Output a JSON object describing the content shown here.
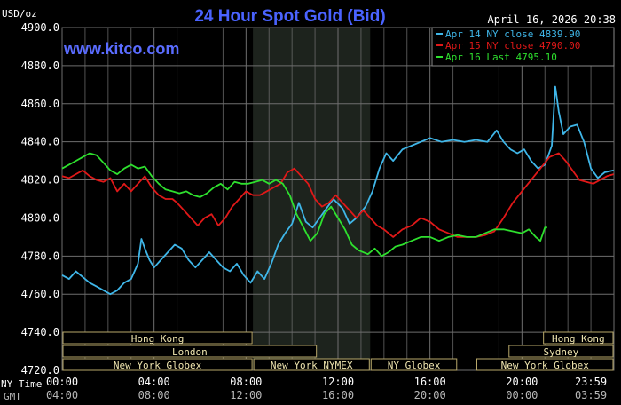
{
  "title": "24 Hour Spot Gold (Bid)",
  "unit_label": "USD/oz",
  "watermark": "www.kitco.com",
  "timestamp": "April 16, 2026 20:38",
  "colors": {
    "background": "#000000",
    "grid": "#6e6e6e",
    "title": "#4a63ff",
    "watermark": "#5a6cff",
    "apr14": "#3fb6e8",
    "apr15": "#e01818",
    "apr16": "#2ee02e",
    "session_box_text": "#f0e6b0",
    "session_box_border": "#b8a86a"
  },
  "chart_data": {
    "type": "line",
    "ylim": [
      4720,
      4900
    ],
    "y_ticks": [
      "4900.0",
      "4880.0",
      "4860.0",
      "4840.0",
      "4820.0",
      "4800.0",
      "4780.0",
      "4760.0",
      "4740.0",
      "4720.0"
    ],
    "y_tick_values": [
      4900,
      4880,
      4860,
      4840,
      4820,
      4800,
      4780,
      4760,
      4740,
      4720
    ],
    "xlim": [
      0,
      24
    ],
    "x_tick_hours": [
      0,
      4,
      8,
      12,
      16,
      20,
      24
    ],
    "ny_time_label": "NY Time",
    "gmt_label": "GMT",
    "ny_time_ticks": [
      "00:00",
      "04:00",
      "08:00",
      "12:00",
      "16:00",
      "20:00",
      "23:59"
    ],
    "gmt_ticks": [
      "04:00",
      "08:00",
      "12:00",
      "16:00",
      "20:00",
      "00:00",
      "03:59"
    ],
    "shaded_region": [
      8.3,
      13.4
    ],
    "series": [
      {
        "name": "Apr 14 NY close 4839.90",
        "color_key": "apr14",
        "points": [
          [
            0,
            4770
          ],
          [
            0.3,
            4768
          ],
          [
            0.6,
            4772
          ],
          [
            0.9,
            4769
          ],
          [
            1.2,
            4766
          ],
          [
            1.5,
            4764
          ],
          [
            1.8,
            4762
          ],
          [
            2.1,
            4760
          ],
          [
            2.4,
            4762
          ],
          [
            2.7,
            4766
          ],
          [
            3.0,
            4768
          ],
          [
            3.3,
            4776
          ],
          [
            3.45,
            4789
          ],
          [
            3.6,
            4784
          ],
          [
            3.8,
            4778
          ],
          [
            4.0,
            4774
          ],
          [
            4.3,
            4778
          ],
          [
            4.6,
            4782
          ],
          [
            4.9,
            4786
          ],
          [
            5.2,
            4784
          ],
          [
            5.5,
            4778
          ],
          [
            5.8,
            4774
          ],
          [
            6.1,
            4778
          ],
          [
            6.4,
            4782
          ],
          [
            6.7,
            4778
          ],
          [
            7.0,
            4774
          ],
          [
            7.3,
            4772
          ],
          [
            7.6,
            4776
          ],
          [
            7.9,
            4770
          ],
          [
            8.2,
            4766
          ],
          [
            8.5,
            4772
          ],
          [
            8.8,
            4768
          ],
          [
            9.1,
            4776
          ],
          [
            9.4,
            4786
          ],
          [
            9.7,
            4792
          ],
          [
            10.0,
            4797
          ],
          [
            10.3,
            4808
          ],
          [
            10.6,
            4798
          ],
          [
            10.9,
            4795
          ],
          [
            11.2,
            4800
          ],
          [
            11.5,
            4805
          ],
          [
            11.8,
            4810
          ],
          [
            12.2,
            4805
          ],
          [
            12.5,
            4797
          ],
          [
            12.8,
            4800
          ],
          [
            13.2,
            4806
          ],
          [
            13.5,
            4814
          ],
          [
            13.8,
            4826
          ],
          [
            14.1,
            4834
          ],
          [
            14.4,
            4830
          ],
          [
            14.8,
            4836
          ],
          [
            15.2,
            4838
          ],
          [
            15.6,
            4840
          ],
          [
            16.0,
            4842
          ],
          [
            16.5,
            4840
          ],
          [
            17.0,
            4841
          ],
          [
            17.5,
            4840
          ],
          [
            18.0,
            4841
          ],
          [
            18.5,
            4840
          ],
          [
            18.9,
            4846
          ],
          [
            19.2,
            4840
          ],
          [
            19.5,
            4836
          ],
          [
            19.8,
            4834
          ],
          [
            20.1,
            4836
          ],
          [
            20.4,
            4830
          ],
          [
            20.7,
            4826
          ],
          [
            21.0,
            4828
          ],
          [
            21.3,
            4838
          ],
          [
            21.45,
            4869
          ],
          [
            21.6,
            4856
          ],
          [
            21.8,
            4844
          ],
          [
            22.1,
            4848
          ],
          [
            22.4,
            4849
          ],
          [
            22.7,
            4840
          ],
          [
            23.0,
            4826
          ],
          [
            23.3,
            4821
          ],
          [
            23.6,
            4824
          ],
          [
            23.99,
            4825
          ]
        ]
      },
      {
        "name": "Apr 15 NY close 4790.00",
        "color_key": "apr15",
        "points": [
          [
            0,
            4822
          ],
          [
            0.3,
            4821
          ],
          [
            0.6,
            4823
          ],
          [
            0.9,
            4825
          ],
          [
            1.2,
            4822
          ],
          [
            1.5,
            4820
          ],
          [
            1.8,
            4819
          ],
          [
            2.1,
            4821
          ],
          [
            2.4,
            4814
          ],
          [
            2.7,
            4818
          ],
          [
            3.0,
            4814
          ],
          [
            3.3,
            4818
          ],
          [
            3.6,
            4822
          ],
          [
            3.9,
            4816
          ],
          [
            4.2,
            4812
          ],
          [
            4.5,
            4810
          ],
          [
            4.8,
            4810
          ],
          [
            5.0,
            4808
          ],
          [
            5.3,
            4804
          ],
          [
            5.6,
            4800
          ],
          [
            5.9,
            4796
          ],
          [
            6.2,
            4800
          ],
          [
            6.5,
            4802
          ],
          [
            6.8,
            4796
          ],
          [
            7.1,
            4800
          ],
          [
            7.4,
            4806
          ],
          [
            7.7,
            4810
          ],
          [
            8.0,
            4814
          ],
          [
            8.3,
            4812
          ],
          [
            8.6,
            4812
          ],
          [
            8.9,
            4814
          ],
          [
            9.2,
            4816
          ],
          [
            9.5,
            4818
          ],
          [
            9.8,
            4824
          ],
          [
            10.1,
            4826
          ],
          [
            10.4,
            4822
          ],
          [
            10.7,
            4818
          ],
          [
            11.0,
            4810
          ],
          [
            11.3,
            4806
          ],
          [
            11.6,
            4808
          ],
          [
            11.9,
            4812
          ],
          [
            12.2,
            4808
          ],
          [
            12.5,
            4804
          ],
          [
            12.8,
            4800
          ],
          [
            13.1,
            4804
          ],
          [
            13.4,
            4800
          ],
          [
            13.7,
            4796
          ],
          [
            14.0,
            4794
          ],
          [
            14.4,
            4790
          ],
          [
            14.8,
            4794
          ],
          [
            15.2,
            4796
          ],
          [
            15.6,
            4800
          ],
          [
            16.0,
            4798
          ],
          [
            16.4,
            4794
          ],
          [
            16.8,
            4792
          ],
          [
            17.2,
            4790
          ],
          [
            17.6,
            4790
          ],
          [
            18.0,
            4790
          ],
          [
            18.4,
            4791
          ],
          [
            18.8,
            4793
          ],
          [
            19.2,
            4800
          ],
          [
            19.6,
            4808
          ],
          [
            20.0,
            4814
          ],
          [
            20.4,
            4820
          ],
          [
            20.8,
            4826
          ],
          [
            21.2,
            4832
          ],
          [
            21.6,
            4834
          ],
          [
            21.9,
            4830
          ],
          [
            22.2,
            4825
          ],
          [
            22.5,
            4820
          ],
          [
            22.8,
            4819
          ],
          [
            23.1,
            4818
          ],
          [
            23.4,
            4820
          ],
          [
            23.7,
            4822
          ],
          [
            23.99,
            4823
          ]
        ]
      },
      {
        "name": "Apr 16 Last 4795.10",
        "color_key": "apr16",
        "points": [
          [
            0,
            4826
          ],
          [
            0.3,
            4828
          ],
          [
            0.6,
            4830
          ],
          [
            0.9,
            4832
          ],
          [
            1.2,
            4834
          ],
          [
            1.5,
            4833
          ],
          [
            1.8,
            4829
          ],
          [
            2.1,
            4825
          ],
          [
            2.4,
            4823
          ],
          [
            2.7,
            4826
          ],
          [
            3.0,
            4828
          ],
          [
            3.3,
            4826
          ],
          [
            3.6,
            4827
          ],
          [
            3.9,
            4822
          ],
          [
            4.2,
            4818
          ],
          [
            4.5,
            4815
          ],
          [
            4.8,
            4814
          ],
          [
            5.1,
            4813
          ],
          [
            5.4,
            4814
          ],
          [
            5.7,
            4812
          ],
          [
            6.0,
            4811
          ],
          [
            6.3,
            4813
          ],
          [
            6.6,
            4816
          ],
          [
            6.9,
            4818
          ],
          [
            7.2,
            4815
          ],
          [
            7.5,
            4819
          ],
          [
            7.8,
            4818
          ],
          [
            8.1,
            4818
          ],
          [
            8.4,
            4819
          ],
          [
            8.7,
            4820
          ],
          [
            9.0,
            4818
          ],
          [
            9.3,
            4820
          ],
          [
            9.6,
            4818
          ],
          [
            9.9,
            4812
          ],
          [
            10.2,
            4802
          ],
          [
            10.5,
            4795
          ],
          [
            10.8,
            4788
          ],
          [
            11.1,
            4792
          ],
          [
            11.4,
            4802
          ],
          [
            11.7,
            4806
          ],
          [
            12.0,
            4800
          ],
          [
            12.3,
            4794
          ],
          [
            12.6,
            4786
          ],
          [
            12.9,
            4783
          ],
          [
            13.3,
            4781
          ],
          [
            13.6,
            4784
          ],
          [
            13.9,
            4780
          ],
          [
            14.2,
            4782
          ],
          [
            14.5,
            4785
          ],
          [
            14.8,
            4786
          ],
          [
            15.2,
            4788
          ],
          [
            15.6,
            4790
          ],
          [
            16.0,
            4790
          ],
          [
            16.4,
            4788
          ],
          [
            16.8,
            4790
          ],
          [
            17.2,
            4791
          ],
          [
            17.6,
            4790
          ],
          [
            18.0,
            4790
          ],
          [
            18.4,
            4792
          ],
          [
            18.8,
            4794
          ],
          [
            19.2,
            4794
          ],
          [
            19.6,
            4793
          ],
          [
            20.0,
            4792
          ],
          [
            20.3,
            4794
          ],
          [
            20.6,
            4790
          ],
          [
            20.8,
            4788
          ],
          [
            21.0,
            4795
          ],
          [
            21.1,
            4795
          ]
        ]
      }
    ],
    "session_rows": [
      [
        {
          "label": "Hong Kong",
          "start": 0.0,
          "end": 8.3
        },
        {
          "label": "Hong Kong",
          "start": 20.9,
          "end": 24.0
        }
      ],
      [
        {
          "label": "London",
          "start": 0.0,
          "end": 11.1
        },
        {
          "label": "Sydney",
          "start": 19.4,
          "end": 24.0
        }
      ],
      [
        {
          "label": "New York Globex",
          "start": 0.0,
          "end": 8.3
        },
        {
          "label": "New York NYMEX",
          "start": 8.3,
          "end": 13.4
        },
        {
          "label": "NY Globex",
          "start": 13.4,
          "end": 17.2
        },
        {
          "label": "New York Globex",
          "start": 18.0,
          "end": 24.0
        }
      ]
    ]
  }
}
